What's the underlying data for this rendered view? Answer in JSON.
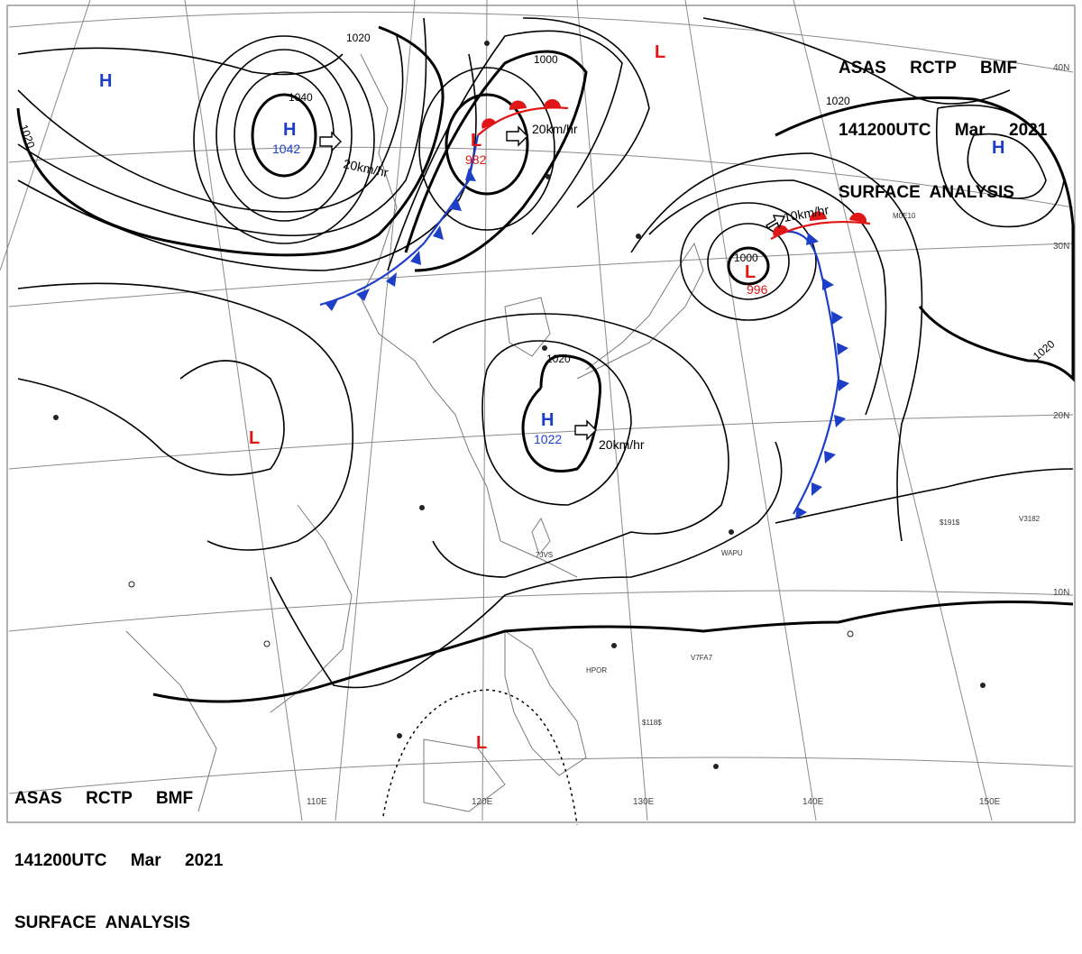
{
  "header_top": {
    "line1": "ASAS     RCTP     BMF",
    "line2": "141200UTC     Mar     2021",
    "line3": "SURFACE  ANALYSIS"
  },
  "header_bottom": {
    "line1": "ASAS     RCTP     BMF",
    "line2": "141200UTC     Mar     2021",
    "line3": "SURFACE  ANALYSIS"
  },
  "colors": {
    "high": "#1d3fc8",
    "low": "#e01515",
    "cold_front": "#1d3fc8",
    "warm_front": "#e01515",
    "isobar": "#000000",
    "coast": "#7a7a7a",
    "grid": "#8a8a8a"
  },
  "pressure_centers": [
    {
      "type": "H",
      "label": "H"
    },
    {
      "type": "H",
      "label": "H",
      "value": "1042"
    },
    {
      "type": "L",
      "label": "L",
      "value": "982"
    },
    {
      "type": "L",
      "label": "L"
    },
    {
      "type": "H",
      "label": "H"
    },
    {
      "type": "L",
      "label": "L",
      "value": "996"
    },
    {
      "type": "H",
      "label": "H",
      "value": "1022"
    },
    {
      "type": "L",
      "label": "L"
    },
    {
      "type": "L",
      "label": "L"
    }
  ],
  "isobar_labels": [
    "1020",
    "1000",
    "1040",
    "1020",
    "1020",
    "1000",
    "1020",
    "1020"
  ],
  "motion_labels": [
    "20km/hr",
    "20km/hr",
    "10km/hr",
    "20km/hr"
  ],
  "longitude_labels": [
    "110E",
    "120E",
    "130E",
    "140E",
    "150E"
  ],
  "latitude_labels": [
    "40N",
    "30N",
    "20N",
    "10N"
  ],
  "station_labels": [
    "HPOR",
    "WAPU",
    "7JVS",
    "V7FA7",
    "$118$",
    "$191$",
    "V3182",
    "M0E10"
  ]
}
